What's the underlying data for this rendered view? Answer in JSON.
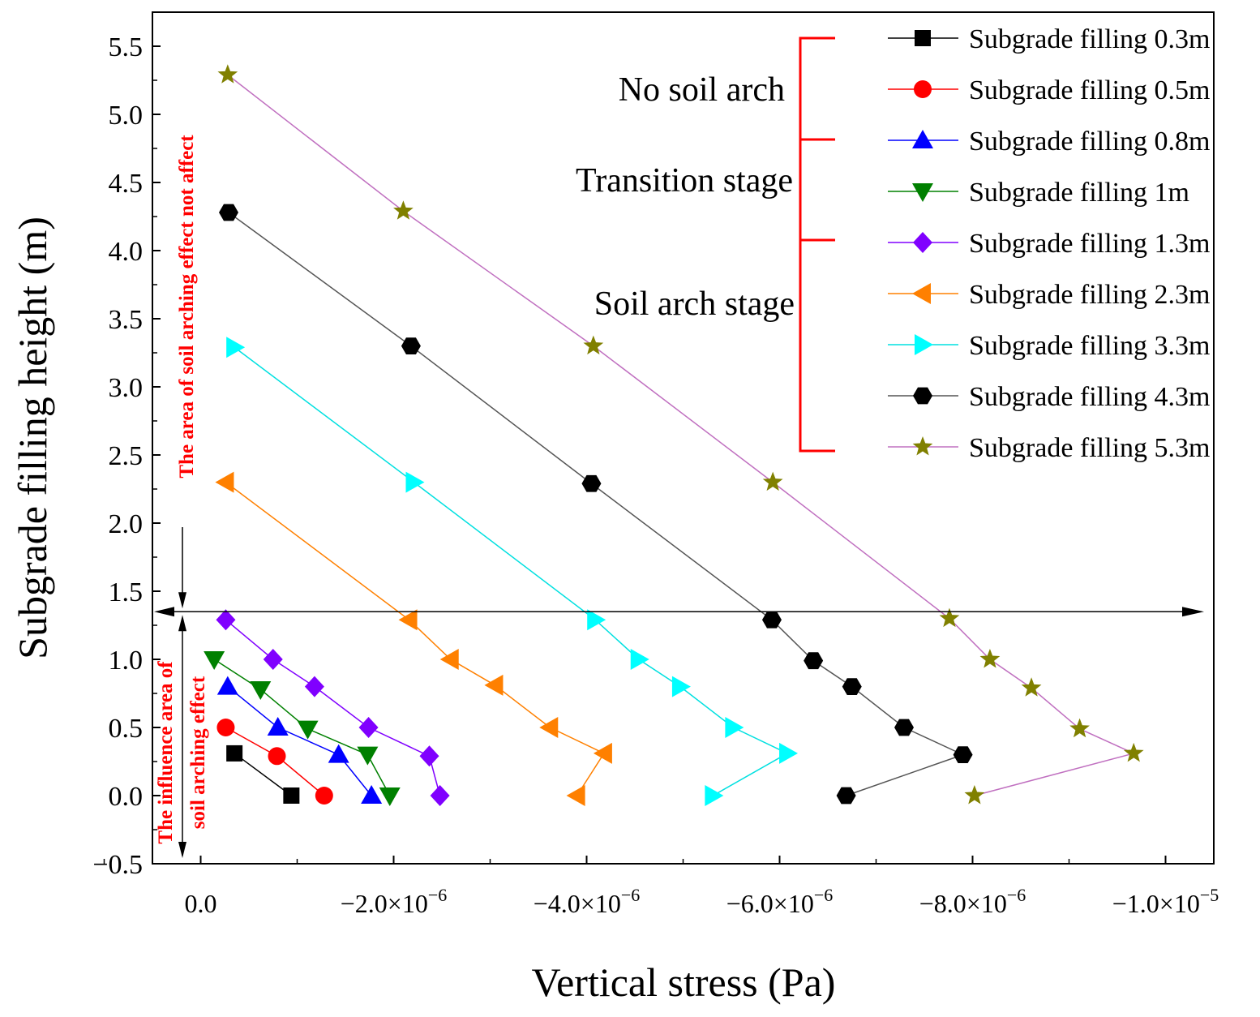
{
  "chart_data": {
    "type": "line",
    "title": "",
    "xlabel": "Vertical stress (Pa)",
    "ylabel": "Subgrade filling height (m)",
    "xlim": [
      5e-07,
      -1.05e-05
    ],
    "ylim": [
      -0.5,
      5.75
    ],
    "x_ticks": [
      {
        "value": 0,
        "base": "0.0",
        "exp": ""
      },
      {
        "value": -2e-06,
        "base": "−2.0×10",
        "exp": "−6"
      },
      {
        "value": -4e-06,
        "base": "−4.0×10",
        "exp": "−6"
      },
      {
        "value": -6e-06,
        "base": "−6.0×10",
        "exp": "−6"
      },
      {
        "value": -8e-06,
        "base": "−8.0×10",
        "exp": "−6"
      },
      {
        "value": -1e-05,
        "base": "−1.0×10",
        "exp": "−5"
      }
    ],
    "y_ticks": [
      "−0.5",
      "0.0",
      "0.5",
      "1.0",
      "1.5",
      "2.0",
      "2.5",
      "3.0",
      "3.5",
      "4.0",
      "4.5",
      "5.0",
      "5.5"
    ],
    "grid": false,
    "legend_position": "top-right",
    "series": [
      {
        "name": "Subgrade filling 0.3m",
        "marker": "square",
        "color": "#000000",
        "line": "#000000",
        "x": [
          -3.5e-07,
          -9.4e-07
        ],
        "y": [
          0.31,
          0.0
        ]
      },
      {
        "name": "Subgrade filling 0.5m",
        "marker": "circle",
        "color": "#ff0000",
        "line": "#ff0000",
        "x": [
          -2.6e-07,
          -7.9e-07,
          -1.28e-06
        ],
        "y": [
          0.5,
          0.29,
          0.0
        ]
      },
      {
        "name": "Subgrade filling 0.8m",
        "marker": "triangle-up",
        "color": "#0000ff",
        "line": "#0000ff",
        "x": [
          -2.8e-07,
          -8e-07,
          -1.43e-06,
          -1.77e-06
        ],
        "y": [
          0.8,
          0.5,
          0.3,
          0.0
        ]
      },
      {
        "name": "Subgrade filling 1m",
        "marker": "triangle-down",
        "color": "#008000",
        "line": "#008000",
        "x": [
          -1.4e-07,
          -6.2e-07,
          -1.11e-06,
          -1.73e-06,
          -1.96e-06
        ],
        "y": [
          1.0,
          0.78,
          0.49,
          0.3,
          0.0
        ]
      },
      {
        "name": "Subgrade filling 1.3m",
        "marker": "diamond",
        "color": "#8000ff",
        "line": "#8000ff",
        "x": [
          -2.6e-07,
          -7.5e-07,
          -1.18e-06,
          -1.74e-06,
          -2.37e-06,
          -2.48e-06
        ],
        "y": [
          1.29,
          1.0,
          0.8,
          0.5,
          0.29,
          0.0
        ]
      },
      {
        "name": "Subgrade filling 2.3m",
        "marker": "triangle-left",
        "color": "#ff8000",
        "line": "#ff8000",
        "x": [
          -2.6e-07,
          -2.16e-06,
          -2.59e-06,
          -3.05e-06,
          -3.62e-06,
          -4.18e-06,
          -3.9e-06
        ],
        "y": [
          2.3,
          1.29,
          1.0,
          0.81,
          0.5,
          0.31,
          0.0
        ]
      },
      {
        "name": "Subgrade filling 3.3m",
        "marker": "triangle-right",
        "color": "#00ffff",
        "line": "#00e0e0",
        "x": [
          -3.5e-07,
          -2.21e-06,
          -4.09e-06,
          -4.54e-06,
          -4.97e-06,
          -5.52e-06,
          -6.08e-06,
          -5.31e-06
        ],
        "y": [
          3.29,
          2.3,
          1.29,
          1.0,
          0.8,
          0.5,
          0.31,
          0.0
        ]
      },
      {
        "name": "Subgrade filling 4.3m",
        "marker": "hexagon",
        "color": "#000000",
        "line": "#555555",
        "x": [
          -2.9e-07,
          -2.18e-06,
          -4.05e-06,
          -5.92e-06,
          -6.35e-06,
          -6.75e-06,
          -7.29e-06,
          -7.9e-06,
          -6.69e-06
        ],
        "y": [
          4.28,
          3.3,
          2.29,
          1.29,
          0.99,
          0.8,
          0.5,
          0.3,
          0.0
        ]
      },
      {
        "name": "Subgrade filling 5.3m",
        "marker": "star",
        "color": "#808000",
        "line": "#c070c0",
        "x": [
          -2.8e-07,
          -2.1e-06,
          -4.07e-06,
          -5.93e-06,
          -7.76e-06,
          -8.18e-06,
          -8.61e-06,
          -9.11e-06,
          -9.67e-06,
          -8.02e-06
        ],
        "y": [
          5.29,
          4.29,
          3.3,
          2.3,
          1.3,
          1.0,
          0.79,
          0.49,
          0.31,
          0.0
        ]
      }
    ],
    "annotations": {
      "stages": [
        "No soil arch",
        "Transition stage",
        "Soil arch stage"
      ],
      "stage_color": "#ff0000",
      "divider_height": 1.35,
      "upper_area_label": "The area of soil arching effect not affect",
      "lower_area_label_1": "The influence area of",
      "lower_area_label_2": "soil arching effect"
    }
  }
}
